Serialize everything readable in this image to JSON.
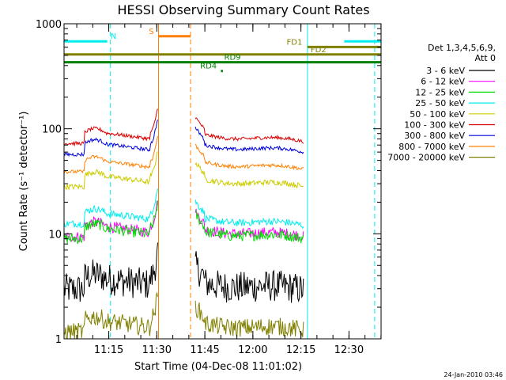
{
  "chart_data": {
    "type": "line",
    "title": "HESSI Observing Summary Count Rates",
    "xlabel": "Start Time (04-Dec-08 11:01:02)",
    "ylabel": "Count Rate (s⁻¹ detector⁻¹)",
    "y_scale": "log",
    "ylim": [
      1,
      1000
    ],
    "xlim_minutes": [
      0,
      99
    ],
    "x_tick_labels": [
      "11:15",
      "11:30",
      "11:45",
      "12:00",
      "12:15",
      "12:30"
    ],
    "x_tick_minutes": [
      13.97,
      28.97,
      43.97,
      58.97,
      73.97,
      88.97
    ],
    "y_tick_labels": [
      "1",
      "10",
      "100",
      "1000"
    ],
    "y_tick_values": [
      1,
      10,
      100,
      1000
    ],
    "legend_title": "Det 1,3,4,5,6,9,",
    "legend_subtitle": "Att 0",
    "legend_placement": "right",
    "timestamp": "24-Jan-2010 03:46",
    "series": [
      {
        "name": "3 - 6 keV",
        "color": "#000000",
        "pre": 3.8,
        "post": 3.4,
        "end": 3.2,
        "noise": 0.35
      },
      {
        "name": "6 - 12 keV",
        "color": "#ff00ff",
        "pre": 12,
        "post": 11,
        "end": 11,
        "noise": 0.12
      },
      {
        "name": "12 - 25 keV",
        "color": "#00dd00",
        "pre": 11.5,
        "post": 10.5,
        "end": 9.5,
        "noise": 0.12
      },
      {
        "name": "25 - 50 keV",
        "color": "#00eeee",
        "pre": 16,
        "post": 14,
        "end": 13,
        "noise": 0.08
      },
      {
        "name": "50 - 100 keV",
        "color": "#cccc00",
        "pre": 36,
        "post": 33,
        "end": 32,
        "noise": 0.06
      },
      {
        "name": "100 - 300 keV",
        "color": "#dd0000",
        "pre": 93,
        "post": 88,
        "end": 75,
        "noise": 0.04
      },
      {
        "name": "300 - 800 keV",
        "color": "#0000dd",
        "pre": 73,
        "post": 70,
        "end": 60,
        "noise": 0.04
      },
      {
        "name": "800 - 7000 keV",
        "color": "#ff8000",
        "pre": 50,
        "post": 48,
        "end": 42,
        "noise": 0.04
      },
      {
        "name": "7000 - 20000 keV",
        "color": "#808000",
        "pre": 1.5,
        "post": 1.4,
        "end": 1.3,
        "noise": 0.2
      }
    ],
    "flags": [
      {
        "label": "N",
        "color": "#00eeee",
        "y": 680,
        "x_ranges": [
          [
            0,
            13.5
          ],
          [
            87.5,
            99
          ]
        ],
        "label_x": 14.5
      },
      {
        "label": "S",
        "color": "#ff8000",
        "y": 760,
        "x_ranges": [
          [
            29.5,
            39.5
          ]
        ],
        "label_x": 26.5
      },
      {
        "label": "FD1",
        "color": "#808000",
        "y": 600,
        "x_ranges": [
          [
            76,
            99
          ]
        ],
        "label_x": 69.5
      },
      {
        "label": "FD2",
        "color": "#808000",
        "y": 510,
        "x_ranges": [
          [
            0,
            99
          ]
        ],
        "label_x": 77
      },
      {
        "label": "RD9",
        "color": "#008000",
        "y": 430,
        "x_ranges": [
          [
            0,
            99
          ]
        ],
        "label_x": 50
      },
      {
        "label": "RD4",
        "color": "#008000",
        "y": 355,
        "x_ranges": [
          [
            49,
            49.6
          ]
        ],
        "label_x": 42.5
      }
    ],
    "vertical_markers": [
      {
        "minute": 14.5,
        "color": "#00eeee",
        "style": "dashed"
      },
      {
        "minute": 29.5,
        "color": "#ff8000",
        "style": "solid"
      },
      {
        "minute": 39.5,
        "color": "#ff8000",
        "style": "dashed"
      },
      {
        "minute": 76,
        "color": "#00eeee",
        "style": "solid"
      },
      {
        "minute": 97,
        "color": "#00eeee",
        "style": "dashed"
      }
    ]
  }
}
